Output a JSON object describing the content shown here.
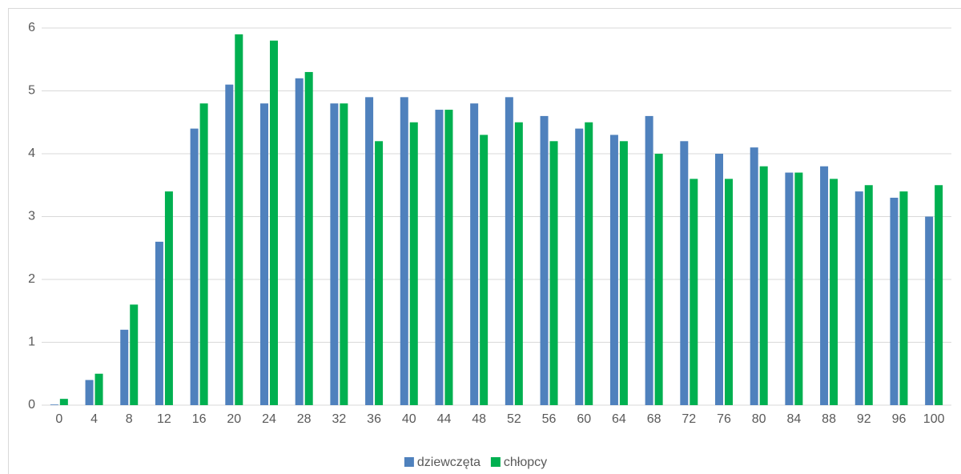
{
  "chart_data": {
    "type": "bar",
    "categories": [
      "0",
      "4",
      "8",
      "12",
      "16",
      "20",
      "24",
      "28",
      "32",
      "36",
      "40",
      "44",
      "48",
      "52",
      "56",
      "60",
      "64",
      "68",
      "72",
      "76",
      "80",
      "84",
      "88",
      "92",
      "96",
      "100"
    ],
    "series": [
      {
        "name": "dziewczęta",
        "color": "#4f81bd",
        "values": [
          0.01,
          0.4,
          1.2,
          2.6,
          4.4,
          5.1,
          4.8,
          5.2,
          4.8,
          4.9,
          4.9,
          4.7,
          4.8,
          4.9,
          4.6,
          4.4,
          4.3,
          4.6,
          4.2,
          4.0,
          4.1,
          3.7,
          3.8,
          3.4,
          3.3,
          3.0
        ]
      },
      {
        "name": "chłopcy",
        "color": "#00b050",
        "values": [
          0.1,
          0.5,
          1.6,
          3.4,
          4.8,
          5.9,
          5.8,
          5.3,
          4.8,
          4.2,
          4.5,
          4.7,
          4.3,
          4.5,
          4.2,
          4.5,
          4.2,
          4.0,
          3.6,
          3.6,
          3.8,
          3.7,
          3.6,
          3.5,
          3.4,
          3.5
        ]
      }
    ],
    "ylim": [
      0,
      6
    ],
    "yticks": [
      0,
      1,
      2,
      3,
      4,
      5,
      6
    ],
    "grid": true,
    "legend": "bottom"
  }
}
